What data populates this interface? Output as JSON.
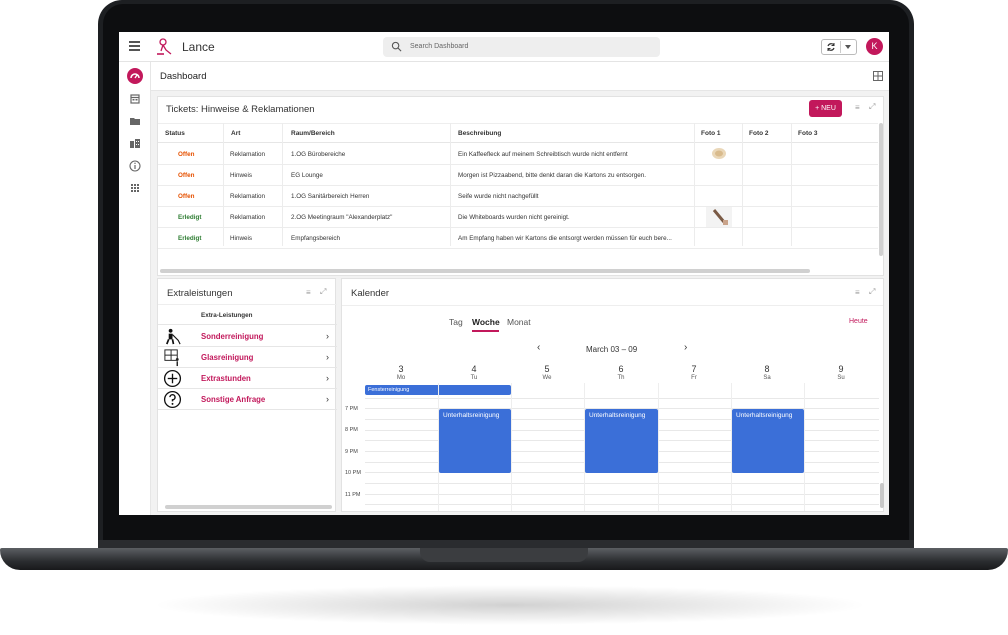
{
  "app": {
    "title": "Lance",
    "avatar_letter": "K",
    "accent": "#c2185b"
  },
  "search": {
    "placeholder": "Search Dashboard"
  },
  "sidebar": {
    "items": [
      "dashboard-icon",
      "calendar-icon",
      "folder-icon",
      "building-icon",
      "info-icon",
      "apps-grid-icon"
    ]
  },
  "page": {
    "title": "Dashboard"
  },
  "tickets": {
    "title": "Tickets: Hinweise & Reklamationen",
    "new_label": "+ NEU",
    "columns": [
      "Status",
      "Art",
      "Raum/Bereich",
      "Beschreibung",
      "Foto 1",
      "Foto 2",
      "Foto 3"
    ],
    "rows": [
      {
        "status": "Offen",
        "art": "Reklamation",
        "raum": "1.OG Bürobereiche",
        "beschreibung": "Ein Kaffeefleck auf meinem Schreibtisch wurde nicht entfernt"
      },
      {
        "status": "Offen",
        "art": "Hinweis",
        "raum": "EG Lounge",
        "beschreibung": "Morgen ist Pizzaabend, bitte denkt daran die Kartons zu entsorgen."
      },
      {
        "status": "Offen",
        "art": "Reklamation",
        "raum": "1.OG Sanitärbereich Herren",
        "beschreibung": "Seife wurde nicht nachgefüllt"
      },
      {
        "status": "Erledigt",
        "art": "Reklamation",
        "raum": "2.OG Meetingraum \"Alexanderplatz\"",
        "beschreibung": "Die Whiteboards wurden nicht gereinigt."
      },
      {
        "status": "Erledigt",
        "art": "Hinweis",
        "raum": "Empfangsbereich",
        "beschreibung": "Am Empfang haben wir Kartons die entsorgt werden müssen für euch bere..."
      }
    ]
  },
  "extras": {
    "title": "Extraleistungen",
    "column": "Extra-Leistungen",
    "items": [
      {
        "label": "Sonderreinigung",
        "icon": "cleaner-person-icon"
      },
      {
        "label": "Glasreinigung",
        "icon": "window-cleaning-icon"
      },
      {
        "label": "Extrastunden",
        "icon": "plus-circle-icon"
      },
      {
        "label": "Sonstige Anfrage",
        "icon": "question-circle-icon"
      }
    ],
    "chevron": "›"
  },
  "calendar": {
    "title": "Kalender",
    "tabs": [
      "Tag",
      "Woche",
      "Monat"
    ],
    "active_tab": "Woche",
    "today_label": "Heute",
    "range": "March 03 – 09",
    "prev": "‹",
    "next": "›",
    "days": [
      {
        "num": "3",
        "name": "Mo"
      },
      {
        "num": "4",
        "name": "Tu"
      },
      {
        "num": "5",
        "name": "We"
      },
      {
        "num": "6",
        "name": "Th"
      },
      {
        "num": "7",
        "name": "Fr"
      },
      {
        "num": "8",
        "name": "Sa"
      },
      {
        "num": "9",
        "name": "Su"
      }
    ],
    "all_day_event": "Fensterreinigung",
    "times": [
      "7 PM",
      "8 PM",
      "9 PM",
      "10 PM",
      "11 PM"
    ],
    "event_label": "Unterhaltsreinigung"
  }
}
